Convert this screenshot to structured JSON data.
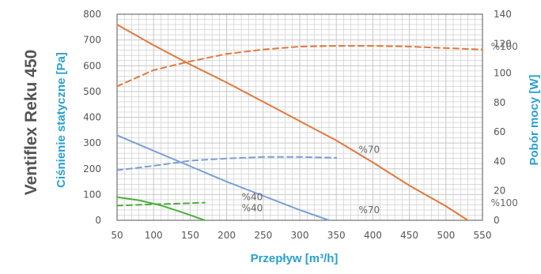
{
  "chart_data": {
    "type": "line",
    "title": "Ventiflex Reku 450",
    "xlabel": "Przepływ [m³/h]",
    "ylabel_left": "Ciśnienie statyczne [Pa]",
    "ylabel_right": "Pobór mocy [W]",
    "xlim": [
      50,
      550
    ],
    "ylim_left": [
      0,
      800
    ],
    "ylim_right": [
      0,
      140
    ],
    "x_ticks": [
      50,
      100,
      150,
      200,
      250,
      300,
      350,
      400,
      450,
      500,
      550
    ],
    "y_left_ticks": [
      0,
      100,
      200,
      300,
      400,
      500,
      600,
      700,
      800
    ],
    "y_right_ticks": [
      0,
      20,
      40,
      60,
      80,
      100,
      120,
      140
    ],
    "grid": true,
    "colors": {
      "orange": "#e0793e",
      "blue": "#7ba0d6",
      "green": "#4caf3f",
      "title": "#555555",
      "axis_label": "#2aa0cf",
      "grid": "#c7c7c7"
    },
    "series": [
      {
        "label": "%100",
        "axis": "left",
        "style": "solid",
        "color": "orange",
        "x": [
          50,
          100,
          150,
          200,
          250,
          300,
          350,
          400,
          450,
          500,
          530
        ],
        "y": [
          760,
          680,
          605,
          535,
          460,
          385,
          310,
          225,
          135,
          55,
          0
        ]
      },
      {
        "label": "%100",
        "axis": "right",
        "style": "dashed",
        "color": "orange",
        "x": [
          50,
          100,
          150,
          200,
          250,
          300,
          350,
          400,
          450,
          500,
          550
        ],
        "y": [
          91,
          102,
          108,
          113,
          116,
          118,
          118.5,
          118.5,
          118,
          117,
          116
        ]
      },
      {
        "label": "%70",
        "axis": "left",
        "style": "solid",
        "color": "blue",
        "x": [
          50,
          100,
          150,
          200,
          250,
          300,
          340
        ],
        "y": [
          330,
          270,
          210,
          150,
          95,
          40,
          0
        ]
      },
      {
        "label": "%70",
        "axis": "right",
        "style": "dashed",
        "color": "blue",
        "x": [
          50,
          100,
          150,
          200,
          250,
          300,
          350
        ],
        "y": [
          34,
          37,
          40.5,
          42,
          43,
          43,
          42.5
        ]
      },
      {
        "label": "%40",
        "axis": "left",
        "style": "solid",
        "color": "green",
        "x": [
          50,
          80,
          110,
          140,
          170
        ],
        "y": [
          90,
          78,
          58,
          30,
          0
        ]
      },
      {
        "label": "%40",
        "axis": "right",
        "style": "dashed",
        "color": "green",
        "x": [
          50,
          80,
          110,
          140,
          170
        ],
        "y": [
          10,
          10.5,
          11,
          11.5,
          12
        ]
      }
    ],
    "annotations": [
      {
        "text": "%100",
        "x": 580,
        "y": 662
      },
      {
        "text": "%100",
        "x": 580,
        "y": 55
      },
      {
        "text": "%70",
        "x": 395,
        "y": 262
      },
      {
        "text": "%70",
        "x": 395,
        "y": 28
      },
      {
        "text": "%40",
        "x": 235,
        "y": 78
      },
      {
        "text": "%40",
        "x": 235,
        "y": 35
      }
    ]
  }
}
